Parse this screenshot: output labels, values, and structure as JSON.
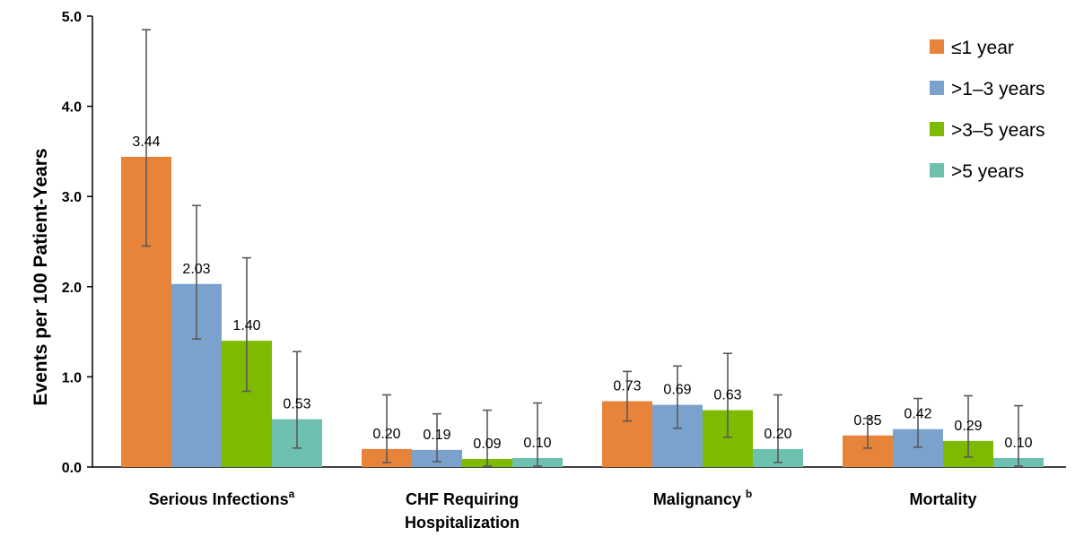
{
  "chart_data": {
    "type": "bar",
    "title": "",
    "xlabel": "",
    "ylabel": "Events per 100 Patient-Years",
    "ylim": [
      0,
      5
    ],
    "yticks": [
      "0.0",
      "1.0",
      "2.0",
      "3.0",
      "4.0",
      "5.0"
    ],
    "categories": [
      {
        "lines": [
          "Serious Infections"
        ],
        "superscript": "a"
      },
      {
        "lines": [
          "CHF Requiring",
          "Hospitalization"
        ],
        "superscript": ""
      },
      {
        "lines": [
          "Malignancy "
        ],
        "superscript": "b"
      },
      {
        "lines": [
          "Mortality"
        ],
        "superscript": ""
      }
    ],
    "series": [
      {
        "name": "≤1 year",
        "color": "#E8833A",
        "values": [
          3.44,
          0.2,
          0.73,
          0.35
        ],
        "labels": [
          "3.44",
          "0.20",
          "0.73",
          "0.35"
        ],
        "err_low": [
          2.45,
          0.05,
          0.51,
          0.21
        ],
        "err_high": [
          4.85,
          0.8,
          1.06,
          0.54
        ]
      },
      {
        "name": ">1–3 years",
        "color": "#7BA2CC",
        "values": [
          2.03,
          0.19,
          0.69,
          0.42
        ],
        "labels": [
          "2.03",
          "0.19",
          "0.69",
          "0.42"
        ],
        "err_low": [
          1.42,
          0.06,
          0.43,
          0.22
        ],
        "err_high": [
          2.9,
          0.59,
          1.12,
          0.76
        ]
      },
      {
        "name": ">3–5 years",
        "color": "#7DBA00",
        "values": [
          1.4,
          0.09,
          0.63,
          0.29
        ],
        "labels": [
          "1.40",
          "0.09",
          "0.63",
          "0.29"
        ],
        "err_low": [
          0.84,
          0.01,
          0.33,
          0.11
        ],
        "err_high": [
          2.32,
          0.63,
          1.26,
          0.79
        ]
      },
      {
        "name": ">5 years",
        "color": "#6EC0B0",
        "values": [
          0.53,
          0.1,
          0.2,
          0.1
        ],
        "labels": [
          "0.53",
          "0.10",
          "0.20",
          "0.10"
        ],
        "err_low": [
          0.21,
          0.01,
          0.05,
          0.01
        ],
        "err_high": [
          1.28,
          0.71,
          0.8,
          0.68
        ]
      }
    ],
    "legend": "top-right",
    "grid": false
  }
}
